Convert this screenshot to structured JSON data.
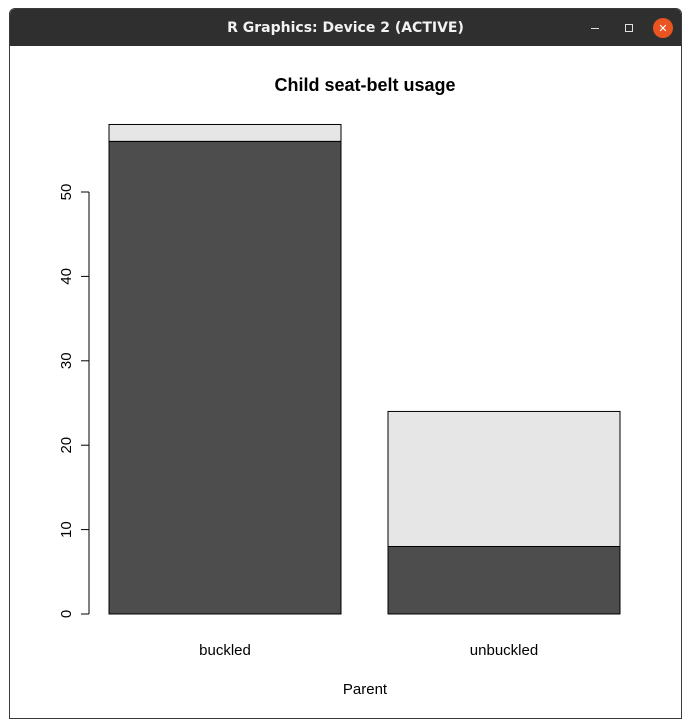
{
  "window": {
    "title": "R Graphics: Device 2 (ACTIVE)",
    "controls": {
      "minimize": "minimize",
      "maximize": "maximize",
      "close": "close"
    }
  },
  "chart_data": {
    "type": "bar",
    "stacked": true,
    "title": "Child seat-belt usage",
    "xlabel": "Parent",
    "ylabel": "",
    "categories": [
      "buckled",
      "unbuckled"
    ],
    "series": [
      {
        "values": [
          56,
          8
        ],
        "color": "#4d4d4d"
      },
      {
        "values": [
          2,
          16
        ],
        "color": "#e6e6e6"
      }
    ],
    "ylim": [
      0,
      58
    ],
    "yticks": [
      0,
      10,
      20,
      30,
      40,
      50
    ],
    "grid": false,
    "legend": "none"
  }
}
